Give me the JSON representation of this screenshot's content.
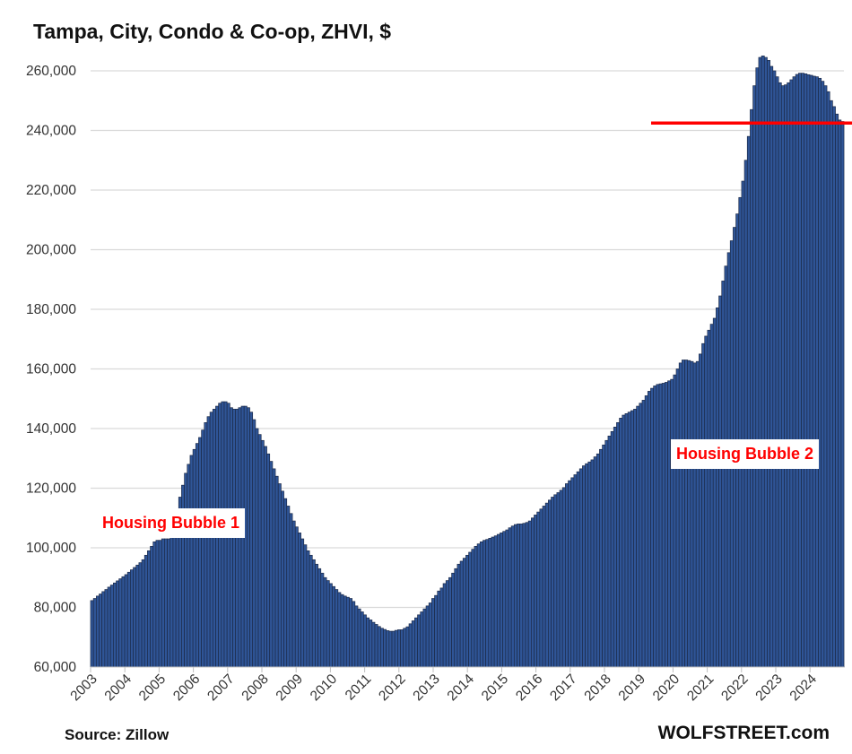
{
  "chart_data": {
    "type": "bar",
    "title": "Tampa, City, Condo & Co-op, ZHVI, $",
    "source": "Source: Zillow",
    "brand": "WOLFSTREET.com",
    "frequency": "monthly",
    "start": "2003-01",
    "ylim": [
      60000,
      260000
    ],
    "yticks": [
      "60,000",
      "80,000",
      "100,000",
      "120,000",
      "140,000",
      "160,000",
      "180,000",
      "200,000",
      "220,000",
      "240,000",
      "260,000"
    ],
    "ytick_values": [
      60000,
      80000,
      100000,
      120000,
      140000,
      160000,
      180000,
      200000,
      220000,
      240000,
      260000
    ],
    "xticks": [
      "2003",
      "2004",
      "2005",
      "2006",
      "2007",
      "2008",
      "2009",
      "2010",
      "2011",
      "2012",
      "2013",
      "2014",
      "2015",
      "2016",
      "2017",
      "2018",
      "2019",
      "2020",
      "2021",
      "2022",
      "2023",
      "2024"
    ],
    "grid": true,
    "bar_color": "#2f5597",
    "annotations": [
      {
        "text": "Housing Bubble 1",
        "color": "#ff0000"
      },
      {
        "text": "Housing Bubble 2",
        "color": "#ff0000"
      }
    ],
    "reference_line": {
      "value": 242500,
      "from": "2019-06",
      "color": "#ff0000"
    },
    "values_thousands": [
      82.3,
      83,
      83.8,
      84.5,
      85.3,
      86,
      86.8,
      87.5,
      88.2,
      88.9,
      89.6,
      90.3,
      91,
      91.8,
      92.6,
      93.4,
      94.2,
      95,
      96,
      97.5,
      99,
      100.5,
      102,
      102.5,
      102.5,
      103,
      103,
      103,
      104,
      108,
      113,
      117,
      121,
      125,
      128,
      131,
      133,
      135,
      137,
      139.5,
      142,
      144,
      145.5,
      146.5,
      147.5,
      148.5,
      149,
      149,
      148.5,
      147,
      146.5,
      146.5,
      147,
      147.5,
      147.5,
      147,
      145.5,
      143,
      140,
      138,
      136,
      134,
      131.5,
      129,
      126.5,
      124,
      121.5,
      119,
      116.5,
      114,
      111.5,
      109,
      107,
      105,
      103,
      101,
      99,
      97.5,
      96,
      94.5,
      93,
      91.5,
      90,
      89,
      88,
      87,
      86,
      85,
      84.3,
      83.8,
      83.4,
      83,
      82,
      80.5,
      79.5,
      78.5,
      77.5,
      76.5,
      75.8,
      75,
      74.3,
      73.6,
      73,
      72.6,
      72.2,
      72,
      72,
      72.3,
      72.5,
      72.5,
      73,
      73.5,
      74.5,
      75.5,
      76.5,
      77.5,
      78.5,
      79.5,
      80.5,
      81.5,
      83,
      84,
      85.5,
      86.5,
      88,
      89,
      90,
      91.5,
      93,
      94.5,
      95.5,
      96.5,
      97.5,
      98.5,
      99.5,
      100.5,
      101.3,
      102,
      102.5,
      102.8,
      103.2,
      103.6,
      104,
      104.5,
      105,
      105.5,
      106,
      106.7,
      107.3,
      107.8,
      108,
      108,
      108.2,
      108.5,
      109,
      110,
      111,
      112,
      113,
      114,
      115,
      116,
      117,
      117.8,
      118.5,
      119.3,
      120.2,
      121.5,
      122.5,
      123.5,
      124.5,
      125.5,
      126.5,
      127.5,
      128.2,
      128.8,
      129.5,
      130.5,
      131.5,
      133,
      134.5,
      136,
      137.5,
      139,
      140.5,
      142,
      143.5,
      144.5,
      145,
      145.5,
      146,
      146.5,
      147.5,
      148.5,
      149.5,
      151,
      152.5,
      153.5,
      154.3,
      154.8,
      155,
      155.2,
      155.5,
      156,
      156.5,
      158,
      160,
      162,
      163,
      163,
      162.8,
      162.5,
      162,
      162.5,
      165,
      168.5,
      171,
      173,
      175,
      177,
      180.5,
      184.5,
      189.5,
      194.5,
      199,
      203,
      207.5,
      212,
      217.5,
      223,
      230,
      238,
      247,
      255,
      261,
      264.5,
      265,
      264.5,
      263.5,
      261.5,
      260,
      258,
      256,
      255,
      255.3,
      256,
      257,
      258,
      258.8,
      259.2,
      259.2,
      259,
      258.7,
      258.5,
      258.2,
      258,
      257.5,
      256.5,
      255,
      253,
      250,
      248,
      245.5,
      243.5,
      243
    ]
  }
}
